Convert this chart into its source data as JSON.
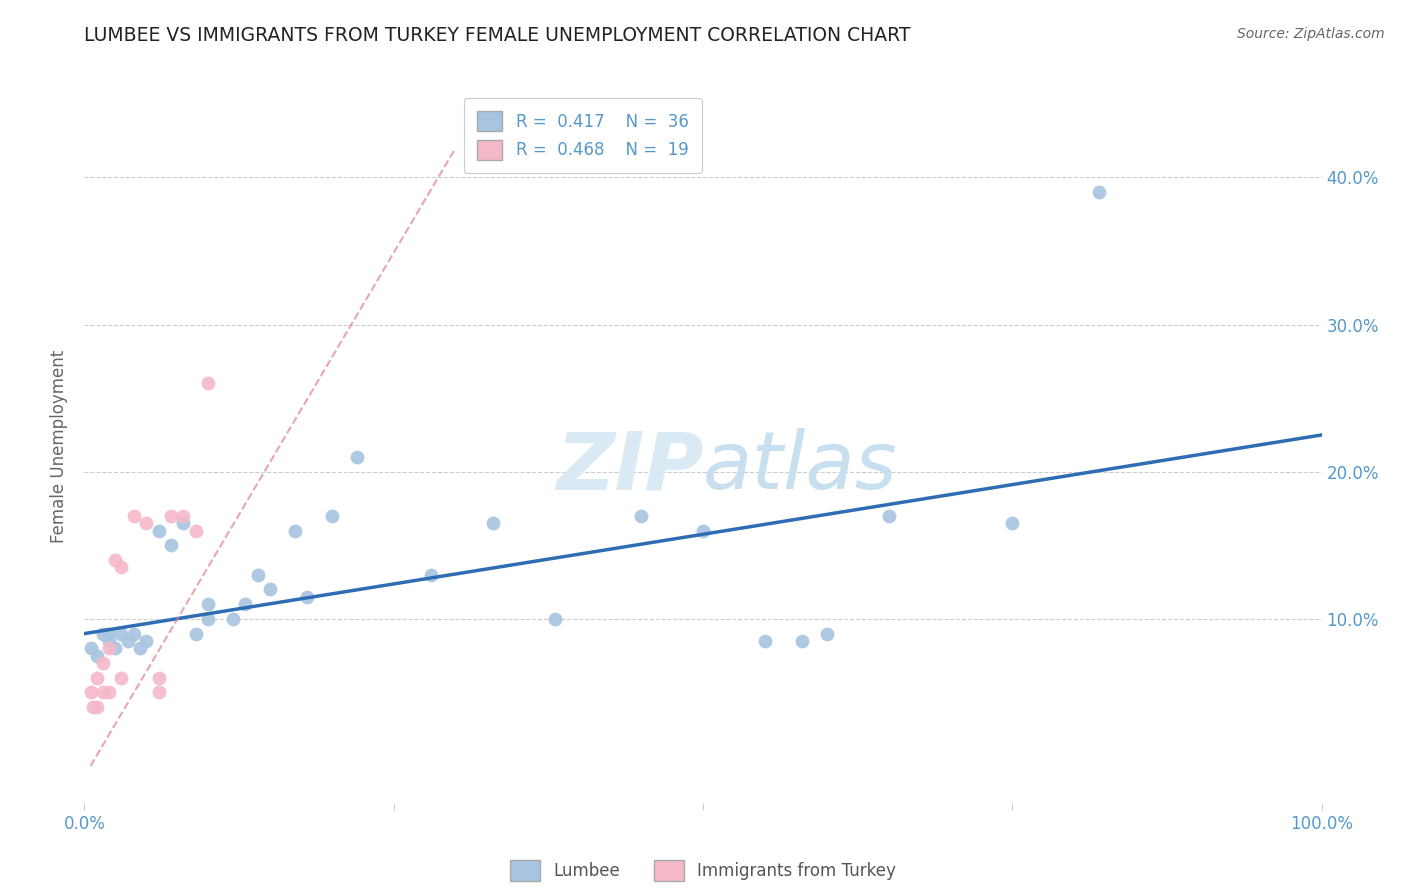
{
  "title": "LUMBEE VS IMMIGRANTS FROM TURKEY FEMALE UNEMPLOYMENT CORRELATION CHART",
  "source": "Source: ZipAtlas.com",
  "ylabel": "Female Unemployment",
  "xlim": [
    0,
    1.0
  ],
  "ylim": [
    -0.025,
    0.46
  ],
  "ytick_labels": [
    "10.0%",
    "20.0%",
    "30.0%",
    "40.0%"
  ],
  "ytick_values": [
    0.1,
    0.2,
    0.3,
    0.4
  ],
  "r_lumbee": 0.417,
  "n_lumbee": 36,
  "r_turkey": 0.468,
  "n_turkey": 19,
  "lumbee_color": "#a8c4e0",
  "turkey_color": "#f4b8c8",
  "lumbee_line_color": "#2e6db4",
  "turkey_line_color": "#e08090",
  "watermark_color": "#daeaf5",
  "background_color": "#ffffff",
  "lumbee_x": [
    0.005,
    0.01,
    0.015,
    0.02,
    0.02,
    0.025,
    0.03,
    0.035,
    0.04,
    0.045,
    0.05,
    0.06,
    0.07,
    0.08,
    0.09,
    0.1,
    0.1,
    0.12,
    0.13,
    0.14,
    0.15,
    0.17,
    0.18,
    0.2,
    0.22,
    0.28,
    0.33,
    0.38,
    0.55,
    0.6,
    0.65,
    0.75,
    0.82,
    0.45,
    0.5,
    0.58
  ],
  "lumbee_y": [
    0.08,
    0.075,
    0.09,
    0.085,
    0.09,
    0.08,
    0.09,
    0.085,
    0.09,
    0.08,
    0.085,
    0.16,
    0.15,
    0.165,
    0.09,
    0.1,
    0.11,
    0.1,
    0.11,
    0.13,
    0.12,
    0.16,
    0.115,
    0.17,
    0.21,
    0.13,
    0.165,
    0.1,
    0.085,
    0.09,
    0.17,
    0.165,
    0.39,
    0.17,
    0.16,
    0.085
  ],
  "turkey_x": [
    0.005,
    0.007,
    0.01,
    0.01,
    0.015,
    0.015,
    0.02,
    0.02,
    0.025,
    0.03,
    0.03,
    0.04,
    0.05,
    0.06,
    0.06,
    0.07,
    0.08,
    0.09,
    0.1
  ],
  "turkey_y": [
    0.05,
    0.04,
    0.04,
    0.06,
    0.05,
    0.07,
    0.05,
    0.08,
    0.14,
    0.06,
    0.135,
    0.17,
    0.165,
    0.05,
    0.06,
    0.17,
    0.17,
    0.16,
    0.26
  ],
  "blue_line_x0": 0.0,
  "blue_line_y0": 0.09,
  "blue_line_x1": 1.0,
  "blue_line_y1": 0.225,
  "pink_line_x0": 0.005,
  "pink_line_y0": 0.0,
  "pink_line_x1": 0.3,
  "pink_line_y1": 0.42
}
